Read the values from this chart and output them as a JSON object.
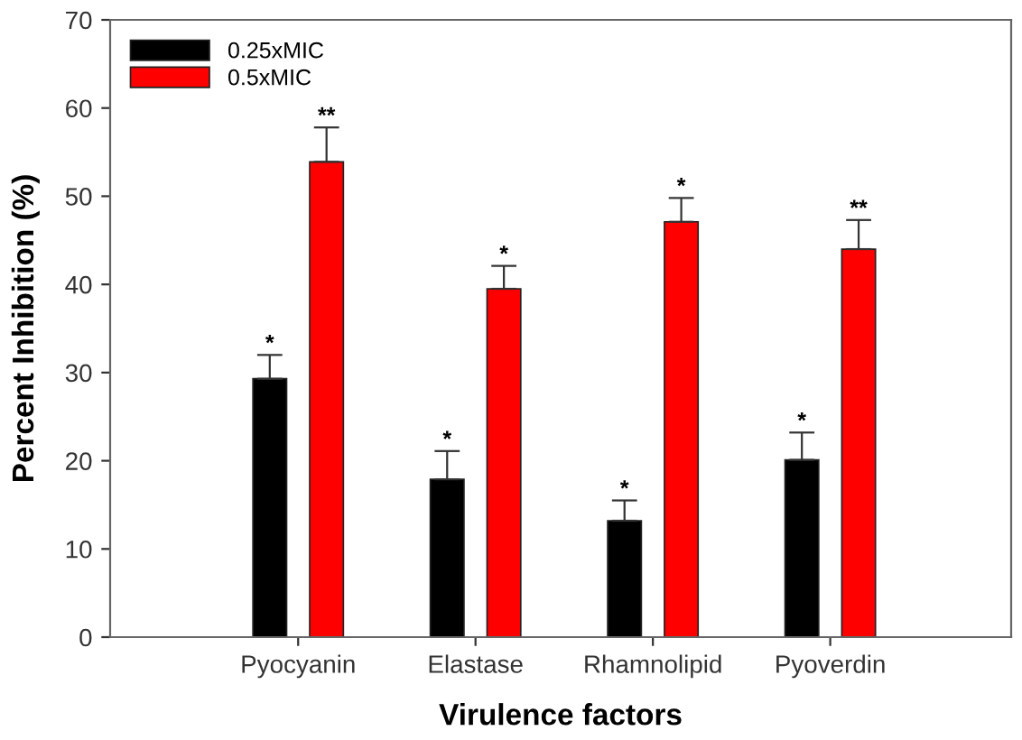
{
  "chart_data": {
    "type": "bar",
    "xlabel": "Virulence factors",
    "ylabel": "Percent Inhibition (%)",
    "categories": [
      "Pyocyanin",
      "Elastase",
      "Rhamnolipid",
      "Pyoverdin"
    ],
    "series": [
      {
        "name": "0.25xMIC",
        "color": "#000000",
        "values": [
          29.3,
          17.9,
          13.2,
          20.1
        ],
        "errors": [
          [
            29.3,
            32.0
          ],
          [
            17.9,
            21.1
          ],
          [
            13.2,
            15.5
          ],
          [
            20.1,
            23.2
          ]
        ]
      },
      {
        "name": "0.5xMIC",
        "color": "#ff0000",
        "values": [
          53.9,
          39.5,
          47.1,
          44.0
        ],
        "errors": [
          [
            53.9,
            57.8
          ],
          [
            39.5,
            42.1
          ],
          [
            47.1,
            49.8
          ],
          [
            44.0,
            47.3
          ]
        ]
      }
    ],
    "annotations": [
      "*",
      "**",
      "*",
      "*",
      "*",
      "*",
      "*",
      "**"
    ],
    "ylim": [
      0,
      70
    ],
    "yticks": [
      0,
      10,
      20,
      30,
      40,
      50,
      60,
      70
    ],
    "grid": false,
    "legend": "top left"
  }
}
